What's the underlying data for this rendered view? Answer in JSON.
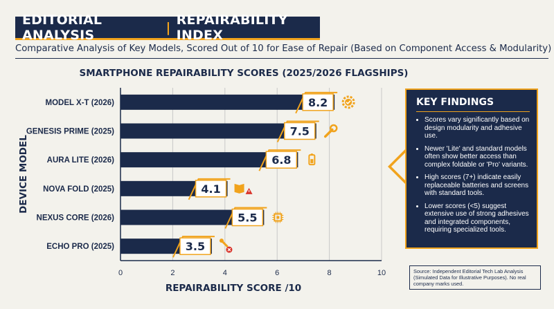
{
  "header": {
    "left": "EDITORIAL ANALYSIS",
    "separator": "|",
    "right": "REPAIRABILITY INDEX"
  },
  "subtitle": "Comparative Analysis of Key Models, Scored Out of 10 for Ease of Repair (Based on Component Access & Modularity)",
  "chart_data": {
    "type": "bar",
    "orientation": "horizontal",
    "title": "SMARTPHONE REPAIRABILITY SCORES (2025/2026 FLAGSHIPS)",
    "xlabel": "REPAIRABILITY SCORE /10",
    "ylabel": "DEVICE MODEL",
    "categories": [
      "MODEL X-T (2026)",
      "GENESIS PRIME (2025)",
      "AURA LITE (2026)",
      "NOVA FOLD (2025)",
      "NEXUS CORE (2026)",
      "ECHO PRO (2025)"
    ],
    "values": [
      8.2,
      7.5,
      6.8,
      4.1,
      5.5,
      3.5
    ],
    "value_labels": [
      "8.2",
      "7.5",
      "6.8",
      "4.1",
      "5.5",
      "3.5"
    ],
    "icons": [
      "gear-check-icon",
      "wrench-icon",
      "battery-icon",
      "warning-book-icon",
      "chip-icon",
      "screw-x-icon"
    ],
    "xlim": [
      0,
      10
    ],
    "xticks": [
      "0",
      "2",
      "4",
      "6",
      "8",
      "10"
    ],
    "grid": true,
    "colors": {
      "bar": "#1b2a4a",
      "accent": "#f1a31c",
      "grid": "#c8c8c8",
      "warning": "#d9342b"
    }
  },
  "findings": {
    "title": "KEY FINDINGS",
    "items": [
      "Scores vary significantly based on design modularity and adhesive use.",
      "Newer 'Lite' and standard models often show better access than complex foldable or 'Pro' variants.",
      "High scores (7+) indicate easily replaceable batteries and screens with standard tools.",
      "Lower scores (<5) suggest extensive use of strong adhesives and integrated components, requiring specialized tools."
    ]
  },
  "source": "Source: Independent Editorial Tech Lab Analysis (Simulated Data for Illustrative Purposes). No real company marks used."
}
